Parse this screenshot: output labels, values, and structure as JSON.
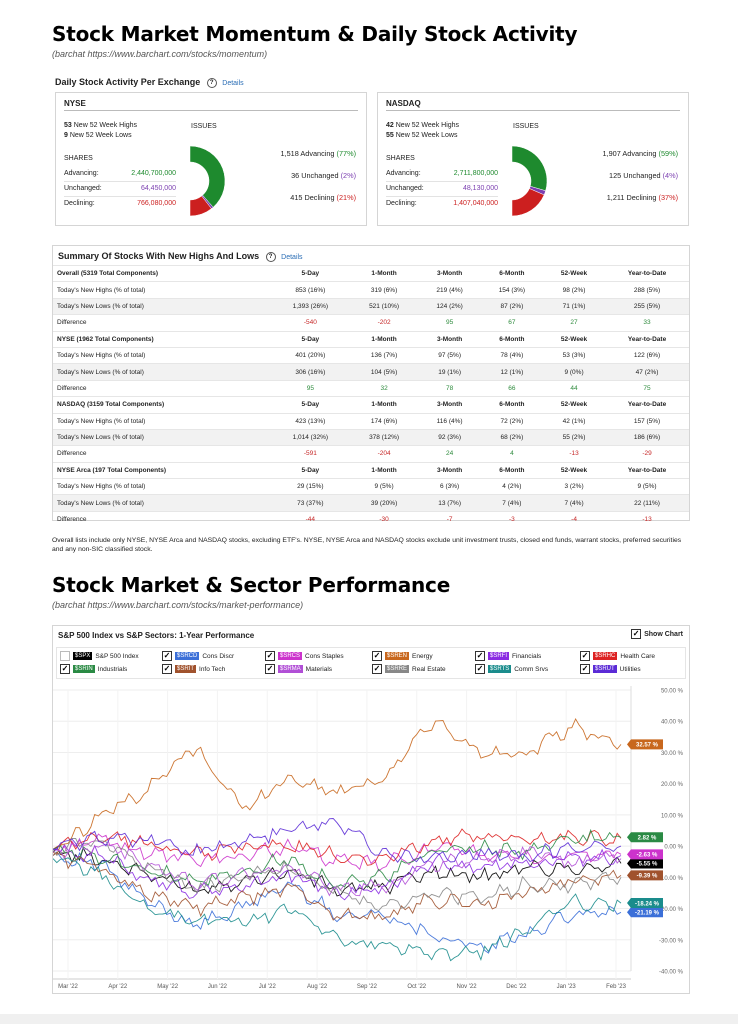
{
  "heading1": "Stock Market Momentum & Daily Stock Activity",
  "subheading1": "(barchat https://www.barchart.com/stocks/momentum)",
  "daily_title": "Daily Stock Activity Per Exchange",
  "details_label": "Details",
  "exchanges": [
    {
      "name": "NYSE",
      "highs_num": "53",
      "highs_label": "New 52 Week Highs",
      "lows_num": "9",
      "lows_label": "New 52 Week Lows",
      "shares_label": "SHARES",
      "issues_label": "ISSUES",
      "shares": [
        {
          "label": "Advancing:",
          "value": "2,440,700,000"
        },
        {
          "label": "Unchanged:",
          "value": "64,450,000"
        },
        {
          "label": "Declining:",
          "value": "766,080,000"
        }
      ],
      "issues": [
        {
          "count": "1,518 Advancing",
          "pct": "(77%)"
        },
        {
          "count": "36 Unchanged",
          "pct": "(2%)"
        },
        {
          "count": "415 Declining",
          "pct": "(21%)"
        }
      ],
      "donut": {
        "advancing": 77,
        "unchanged": 2,
        "declining": 21
      }
    },
    {
      "name": "NASDAQ",
      "highs_num": "42",
      "highs_label": "New 52 Week Highs",
      "lows_num": "55",
      "lows_label": "New 52 Week Lows",
      "shares_label": "SHARES",
      "issues_label": "ISSUES",
      "shares": [
        {
          "label": "Advancing:",
          "value": "2,711,800,000"
        },
        {
          "label": "Unchanged:",
          "value": "48,130,000"
        },
        {
          "label": "Declining:",
          "value": "1,407,040,000"
        }
      ],
      "issues": [
        {
          "count": "1,907 Advancing",
          "pct": "(59%)"
        },
        {
          "count": "125 Unchanged",
          "pct": "(4%)"
        },
        {
          "count": "1,211 Declining",
          "pct": "(37%)"
        }
      ],
      "donut": {
        "advancing": 59,
        "unchanged": 4,
        "declining": 37
      }
    }
  ],
  "summary_title": "Summary Of Stocks With New Highs And Lows",
  "summary_groups": [
    {
      "header": [
        "Overall (5319 Total Components)",
        "5-Day",
        "1-Month",
        "3-Month",
        "6-Month",
        "52-Week",
        "Year-to-Date"
      ],
      "highs": [
        "Today's New Highs (% of total)",
        "853 (16%)",
        "319 (6%)",
        "219 (4%)",
        "154 (3%)",
        "98 (2%)",
        "288 (5%)"
      ],
      "lows": [
        "Today's New Lows (% of total)",
        "1,393 (26%)",
        "521 (10%)",
        "124 (2%)",
        "87 (2%)",
        "71 (1%)",
        "255 (5%)"
      ],
      "diff": [
        "Difference",
        "-540",
        "-202",
        "95",
        "67",
        "27",
        "33"
      ]
    },
    {
      "header": [
        "NYSE (1962 Total Components)",
        "5-Day",
        "1-Month",
        "3-Month",
        "6-Month",
        "52-Week",
        "Year-to-Date"
      ],
      "highs": [
        "Today's New Highs (% of total)",
        "401 (20%)",
        "136 (7%)",
        "97 (5%)",
        "78 (4%)",
        "53 (3%)",
        "122 (6%)"
      ],
      "lows": [
        "Today's New Lows (% of total)",
        "306 (16%)",
        "104 (5%)",
        "19 (1%)",
        "12 (1%)",
        "9 (0%)",
        "47 (2%)"
      ],
      "diff": [
        "Difference",
        "95",
        "32",
        "78",
        "66",
        "44",
        "75"
      ]
    },
    {
      "header": [
        "NASDAQ (3159 Total Components)",
        "5-Day",
        "1-Month",
        "3-Month",
        "6-Month",
        "52-Week",
        "Year-to-Date"
      ],
      "highs": [
        "Today's New Highs (% of total)",
        "423 (13%)",
        "174 (6%)",
        "116 (4%)",
        "72 (2%)",
        "42 (1%)",
        "157 (5%)"
      ],
      "lows": [
        "Today's New Lows (% of total)",
        "1,014 (32%)",
        "378 (12%)",
        "92 (3%)",
        "68 (2%)",
        "55 (2%)",
        "186 (6%)"
      ],
      "diff": [
        "Difference",
        "-591",
        "-204",
        "24",
        "4",
        "-13",
        "-29"
      ]
    },
    {
      "header": [
        "NYSE Arca (197 Total Components)",
        "5-Day",
        "1-Month",
        "3-Month",
        "6-Month",
        "52-Week",
        "Year-to-Date"
      ],
      "highs": [
        "Today's New Highs (% of total)",
        "29 (15%)",
        "9 (5%)",
        "6 (3%)",
        "4 (2%)",
        "3 (2%)",
        "9 (5%)"
      ],
      "lows": [
        "Today's New Lows (% of total)",
        "73 (37%)",
        "39 (20%)",
        "13 (7%)",
        "7 (4%)",
        "7 (4%)",
        "22 (11%)"
      ],
      "diff": [
        "Difference",
        "-44",
        "-30",
        "-7",
        "-3",
        "-4",
        "-13"
      ]
    }
  ],
  "summary_note": "Overall lists include only NYSE, NYSE Arca and NASDAQ stocks, excluding ETF's. NYSE, NYSE Arca and NASDAQ stocks exclude unit investment trusts, closed end funds, warrant stocks, preferred securities and any non-SIC classified stock.",
  "heading2": "Stock Market & Sector Performance",
  "subheading2": "(barchat https://www.barchart.com/stocks/market-performance)",
  "show_chart_label": "Show Chart",
  "colors": {
    "advancing": "#1e8a2e",
    "unchanged": "#7b3fb0",
    "declining": "#cc1f1f",
    "link": "#2a6db5"
  },
  "chart_data": {
    "type": "line",
    "title": "S&P 500 Index vs S&P Sectors: 1-Year Performance",
    "x_labels": [
      "Mar '22",
      "Apr '22",
      "May '22",
      "Jun '22",
      "Jul '22",
      "Aug '22",
      "Sep '22",
      "Oct '22",
      "Nov '22",
      "Dec '22",
      "Jan '23",
      "Feb '23"
    ],
    "y_ticks": [
      "50.00 %",
      "40.00 %",
      "30.00 %",
      "20.00 %",
      "10.00 %",
      "0.00 %",
      "-10.00 %",
      "-20.00 %",
      "-30.00 %",
      "-40.00 %"
    ],
    "ylim": [
      -40,
      50
    ],
    "series": [
      {
        "symbol": "$SPX",
        "name": "S&P 500 Index",
        "color": "#000000",
        "checked": false,
        "values": [
          -2,
          -4,
          -9,
          -14,
          -11,
          -8,
          -14,
          -13,
          -8,
          -10,
          -7,
          -7,
          -5.55
        ],
        "end_label": "-5.55 %"
      },
      {
        "symbol": "$SRCD",
        "name": "Cons Discr",
        "color": "#3b6fd8",
        "checked": true,
        "values": [
          -3,
          -6,
          -18,
          -25,
          -20,
          -12,
          -22,
          -22,
          -28,
          -33,
          -28,
          -22,
          -21.19
        ],
        "end_label": "-21.19 %"
      },
      {
        "symbol": "$SRCS",
        "name": "Cons Staples",
        "color": "#cc33cc",
        "checked": true,
        "values": [
          -1,
          2,
          -2,
          -5,
          -3,
          0,
          -5,
          -6,
          -1,
          -2,
          -4,
          -3,
          -2.63
        ],
        "end_label": "-2.63 %"
      },
      {
        "symbol": "$SREN",
        "name": "Energy",
        "color": "#c8671d",
        "checked": true,
        "values": [
          -2,
          10,
          18,
          32,
          12,
          22,
          17,
          22,
          40,
          30,
          30,
          38,
          32.57
        ],
        "end_label": "32.57 %"
      },
      {
        "symbol": "$SRFI",
        "name": "Financials",
        "color": "#8a2be2",
        "checked": true,
        "values": [
          -1,
          -3,
          -10,
          -15,
          -13,
          -9,
          -15,
          -13,
          -5,
          -7,
          -5,
          -4,
          -3
        ],
        "end_label": ""
      },
      {
        "symbol": "$SRHC",
        "name": "Health Care",
        "color": "#dd2222",
        "checked": true,
        "values": [
          -1,
          3,
          1,
          -3,
          0,
          0,
          -3,
          -4,
          2,
          3,
          2,
          3,
          2.5
        ],
        "end_label": ""
      },
      {
        "symbol": "$SRIN",
        "name": "Industrials",
        "color": "#2a8a44",
        "checked": true,
        "values": [
          -1,
          -3,
          -7,
          -12,
          -8,
          -4,
          -12,
          -10,
          -2,
          0,
          -2,
          2,
          2.82
        ],
        "end_label": "2.82 %"
      },
      {
        "symbol": "$SRIT",
        "name": "Info Tech",
        "color": "#a0522d",
        "checked": true,
        "values": [
          -3,
          -7,
          -15,
          -20,
          -17,
          -13,
          -22,
          -23,
          -17,
          -19,
          -15,
          -11,
          -9.39
        ],
        "end_label": "-9.39 %"
      },
      {
        "symbol": "$SRMA",
        "name": "Materials",
        "color": "#b14fd6",
        "checked": true,
        "values": [
          -2,
          1,
          -6,
          -12,
          -9,
          -7,
          -14,
          -13,
          -6,
          -4,
          -2,
          -5,
          -4
        ],
        "end_label": ""
      },
      {
        "symbol": "$SRRE",
        "name": "Real Estate",
        "color": "#888888",
        "checked": true,
        "values": [
          -1,
          2,
          -6,
          -14,
          -10,
          -7,
          -15,
          -20,
          -15,
          -17,
          -12,
          -13,
          -10
        ],
        "end_label": ""
      },
      {
        "symbol": "$SRTS",
        "name": "Comm Srvs",
        "color": "#1a8c8c",
        "checked": true,
        "values": [
          -4,
          -9,
          -20,
          -24,
          -24,
          -20,
          -30,
          -32,
          -35,
          -34,
          -27,
          -18,
          -18.24
        ],
        "end_label": "-18.24 %"
      },
      {
        "symbol": "$SRUT",
        "name": "Utilities",
        "color": "#5b2bd6",
        "checked": true,
        "values": [
          -1,
          3,
          2,
          -2,
          1,
          5,
          8,
          -3,
          -4,
          -2,
          -3,
          0,
          0
        ],
        "end_label": ""
      }
    ]
  }
}
